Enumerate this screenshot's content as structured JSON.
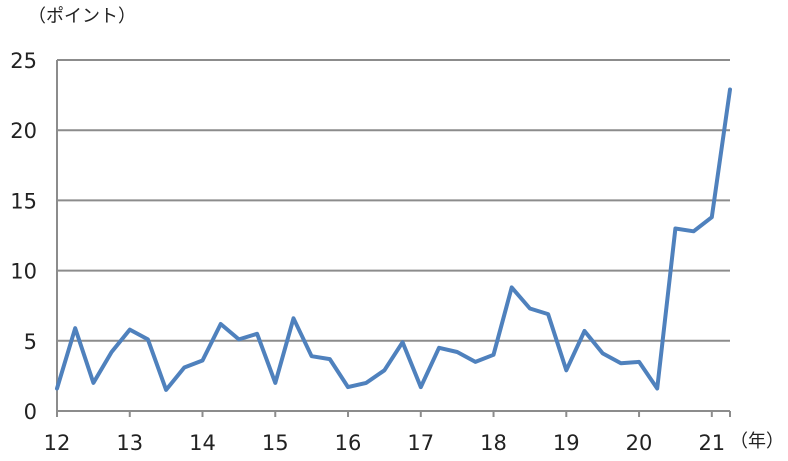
{
  "chart_data": {
    "type": "line",
    "y_unit_label": "（ポイント）",
    "x_unit_label": "（年）",
    "x_tick_labels": [
      "12",
      "13",
      "14",
      "15",
      "16",
      "17",
      "18",
      "19",
      "20",
      "21"
    ],
    "x_tick_values": [
      12,
      13,
      14,
      15,
      16,
      17,
      18,
      19,
      20,
      21
    ],
    "y_tick_labels": [
      "0",
      "5",
      "10",
      "15",
      "20",
      "25"
    ],
    "y_tick_values": [
      0,
      5,
      10,
      15,
      20,
      25
    ],
    "xlim": [
      12,
      21.25
    ],
    "ylim": [
      0,
      25
    ],
    "grid": "horizontal",
    "line_color": "#4F81BD",
    "series": [
      {
        "x": [
          12.0,
          12.25,
          12.5,
          12.75,
          13.0,
          13.25,
          13.5,
          13.75,
          14.0,
          14.25,
          14.5,
          14.75,
          15.0,
          15.25,
          15.5,
          15.75,
          16.0,
          16.25,
          16.5,
          16.75,
          17.0,
          17.25,
          17.5,
          17.75,
          18.0,
          18.25,
          18.5,
          18.75,
          19.0,
          19.25,
          19.5,
          19.75,
          20.0,
          20.25,
          20.5,
          20.75,
          21.0,
          21.25
        ],
        "values": [
          1.6,
          5.9,
          2.0,
          4.2,
          5.8,
          5.1,
          1.5,
          3.1,
          3.6,
          6.2,
          5.1,
          5.5,
          2.0,
          6.6,
          3.9,
          3.7,
          1.7,
          2.0,
          2.9,
          4.9,
          1.7,
          4.5,
          4.2,
          3.5,
          4.0,
          8.8,
          7.3,
          6.9,
          2.9,
          5.7,
          4.1,
          3.4,
          3.5,
          1.6,
          13.0,
          12.8,
          13.8,
          22.9
        ]
      }
    ]
  }
}
